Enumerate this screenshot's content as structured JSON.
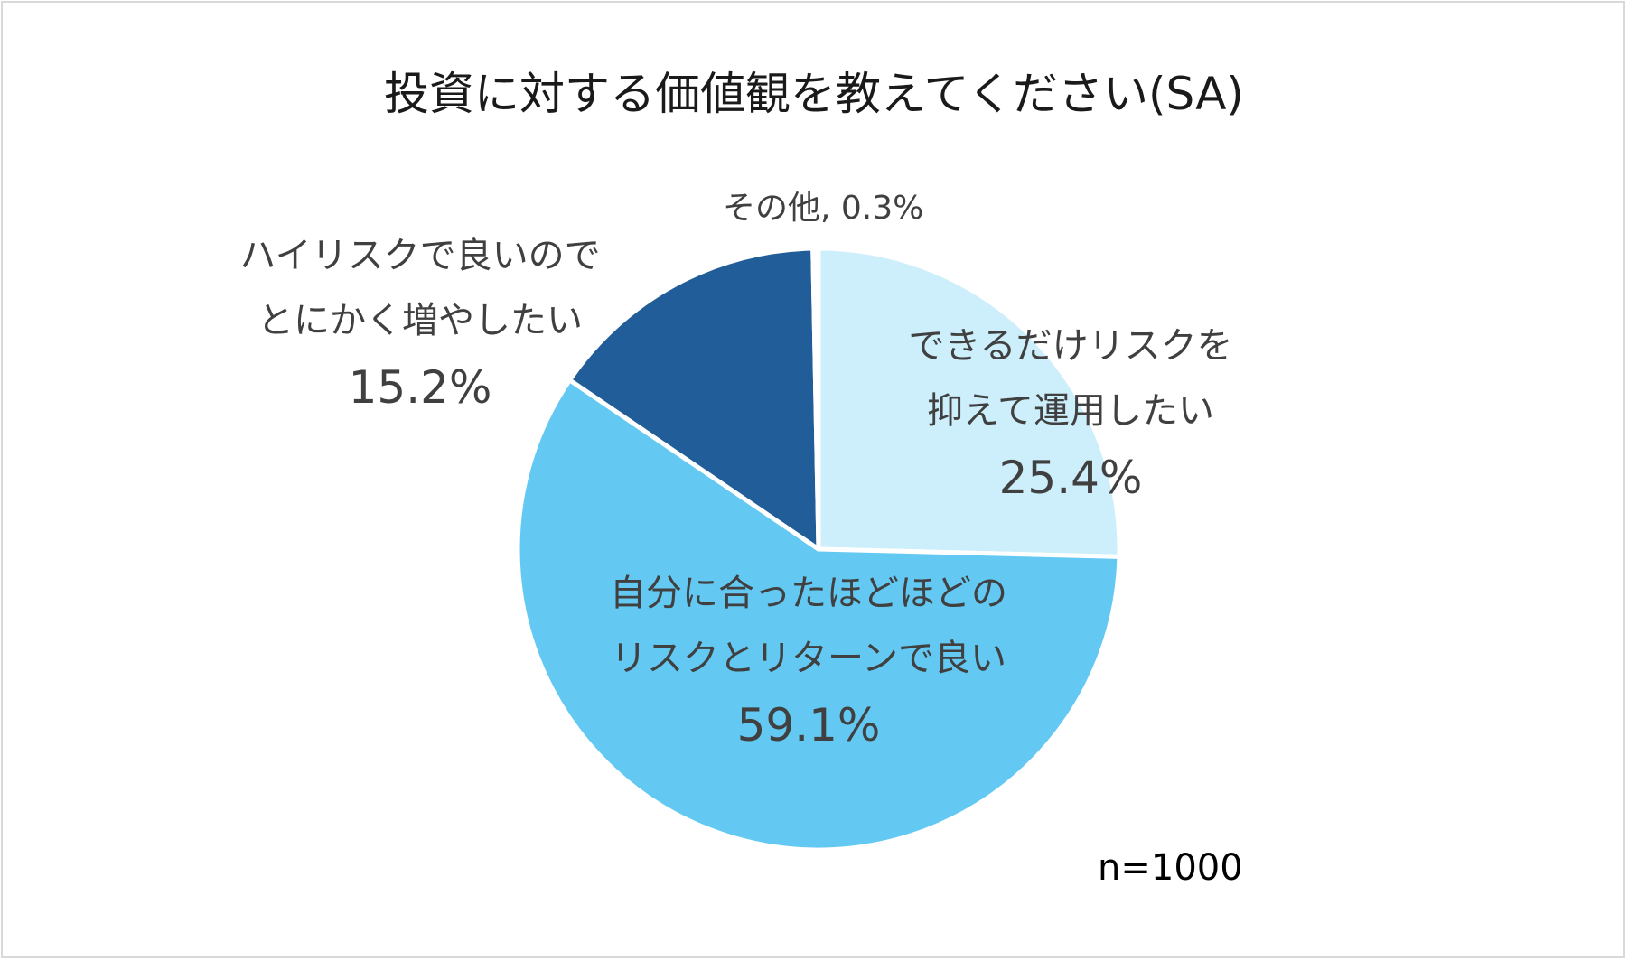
{
  "chart_data": {
    "type": "pie",
    "title": "投資に対する価値観を教えてください(SA)",
    "note": "n=1000",
    "slices": [
      {
        "label_lines": [
          "できるだけリスクを",
          "抑えて運用したい"
        ],
        "value": 25.4,
        "value_label": "25.4%",
        "color": "#cdeefb"
      },
      {
        "label_lines": [
          "自分に合ったほどほどの",
          "リスクとリターンで良い"
        ],
        "value": 59.1,
        "value_label": "59.1%",
        "color": "#63c9f2"
      },
      {
        "label_lines": [
          "ハイリスクで良いので",
          "とにかく増やしたい"
        ],
        "value": 15.2,
        "value_label": "15.2%",
        "color": "#215d98"
      },
      {
        "label_lines": [
          "その他"
        ],
        "value": 0.3,
        "value_label": "0.3%",
        "color": "#ffffff"
      }
    ]
  }
}
